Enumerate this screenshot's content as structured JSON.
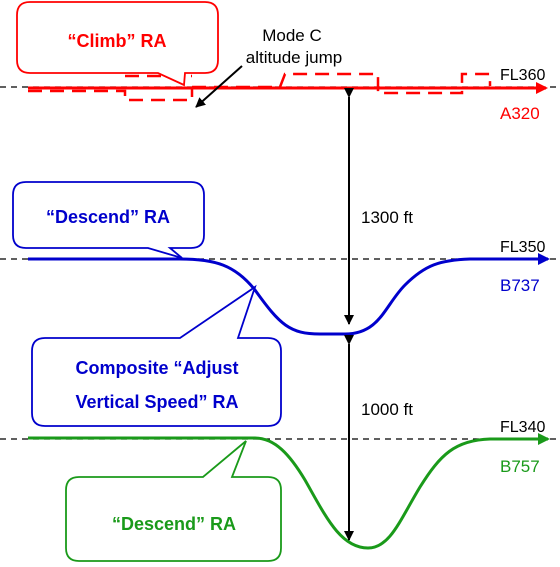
{
  "colors": {
    "red": "#ff0000",
    "blue": "#0000cc",
    "green": "#1a9a1a",
    "black": "#000000"
  },
  "flight_levels": [
    {
      "id": "fl360",
      "label": "FL360"
    },
    {
      "id": "fl350",
      "label": "FL350"
    },
    {
      "id": "fl340",
      "label": "FL340"
    }
  ],
  "aircraft": [
    {
      "id": "a320",
      "label": "A320",
      "color": "#ff0000"
    },
    {
      "id": "b737",
      "label": "B737",
      "color": "#0000cc"
    },
    {
      "id": "b757",
      "label": "B757",
      "color": "#1a9a1a"
    }
  ],
  "separations": [
    {
      "id": "upper",
      "label": "1300 ft"
    },
    {
      "id": "lower",
      "label": "1000 ft"
    }
  ],
  "callouts": {
    "climb_ra": "“Climb” RA",
    "descend_ra_blue": "“Descend” RA",
    "composite_line1": "Composite “Adjust",
    "composite_line2": "Vertical Speed” RA",
    "descend_ra_green": "“Descend” RA"
  },
  "annotation": {
    "line1": "Mode C",
    "line2": "altitude jump"
  }
}
